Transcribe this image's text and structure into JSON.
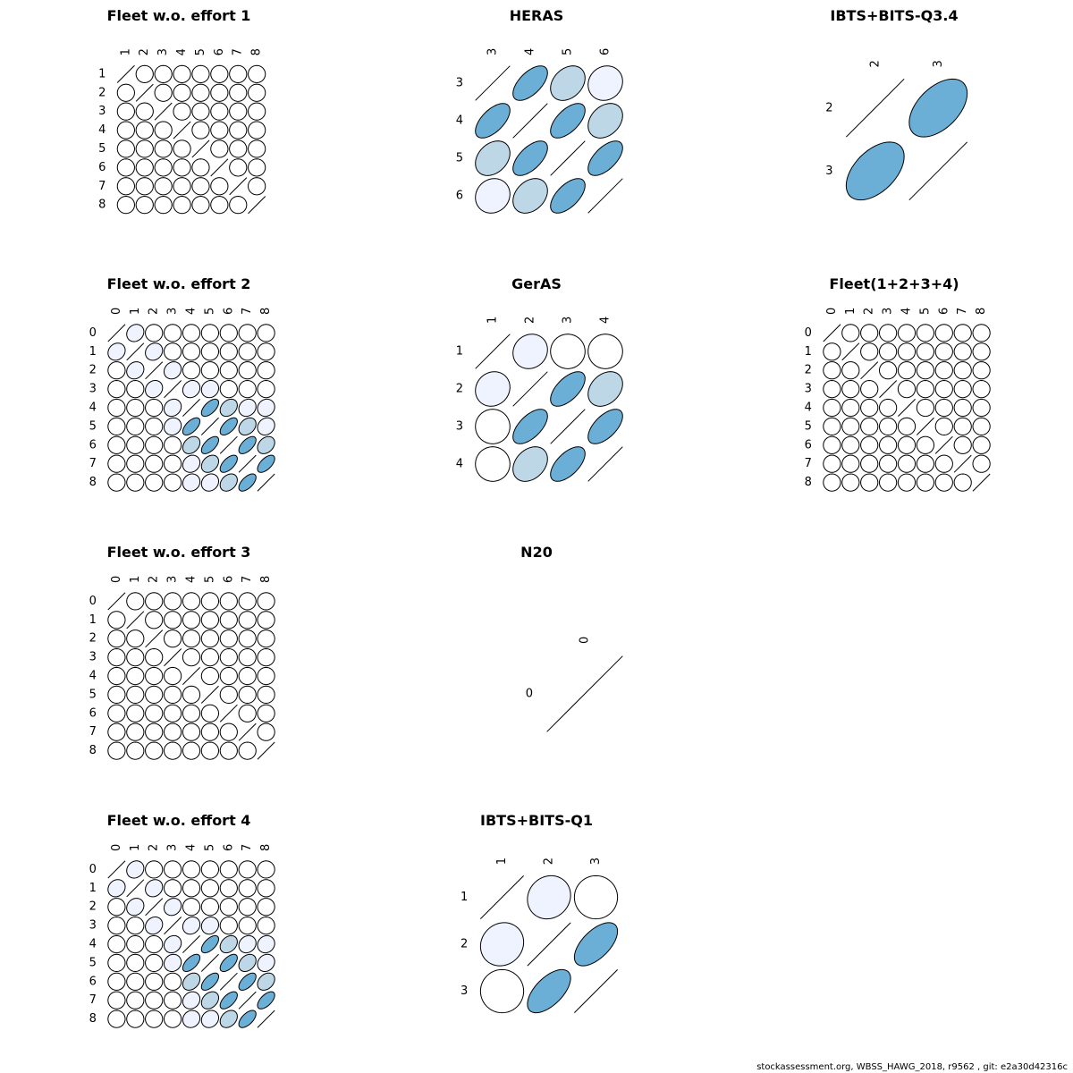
{
  "footer": "stockassessment.org, WBSS_HAWG_2018, r9562 , git: e2a30d42316c",
  "chart_data": [
    {
      "type": "correlation-matrix",
      "title": "Fleet w.o. effort 1",
      "labels": [
        "1",
        "2",
        "3",
        "4",
        "5",
        "6",
        "7",
        "8"
      ],
      "matrix": [
        [
          1,
          0,
          0,
          0,
          0,
          0,
          0,
          0
        ],
        [
          0,
          1,
          0,
          0,
          0,
          0,
          0,
          0
        ],
        [
          0,
          0,
          1,
          0,
          0,
          0,
          0,
          0
        ],
        [
          0,
          0,
          0,
          1,
          0,
          0,
          0,
          0
        ],
        [
          0,
          0,
          0,
          0,
          1,
          0,
          0,
          0
        ],
        [
          0,
          0,
          0,
          0,
          0,
          1,
          0,
          0
        ],
        [
          0,
          0,
          0,
          0,
          0,
          0,
          1,
          0
        ],
        [
          0,
          0,
          0,
          0,
          0,
          0,
          0,
          1
        ]
      ]
    },
    {
      "type": "correlation-matrix",
      "title": "HERAS",
      "labels": [
        "3",
        "4",
        "5",
        "6"
      ],
      "matrix": [
        [
          1,
          0.6,
          0.3,
          0.1
        ],
        [
          0.6,
          1,
          0.6,
          0.3
        ],
        [
          0.3,
          0.6,
          1,
          0.6
        ],
        [
          0.1,
          0.3,
          0.6,
          1
        ]
      ]
    },
    {
      "type": "correlation-matrix",
      "title": "IBTS+BITS-Q3.4",
      "labels": [
        "2",
        "3"
      ],
      "matrix": [
        [
          1,
          0.5
        ],
        [
          0.5,
          1
        ]
      ]
    },
    {
      "type": "correlation-matrix",
      "title": "Fleet w.o. effort 2",
      "labels": [
        "0",
        "1",
        "2",
        "3",
        "4",
        "5",
        "6",
        "7",
        "8"
      ],
      "matrix": [
        [
          1,
          0.15,
          0,
          0,
          0,
          0,
          0,
          0,
          0
        ],
        [
          0.15,
          1,
          0.15,
          0,
          0,
          0,
          0,
          0,
          0
        ],
        [
          0,
          0.15,
          1,
          0.15,
          0,
          0,
          0,
          0,
          0
        ],
        [
          0,
          0,
          0.15,
          1,
          0.15,
          0.1,
          0,
          0,
          0
        ],
        [
          0,
          0,
          0,
          0.15,
          1,
          0.6,
          0.3,
          0.15,
          0.1
        ],
        [
          0,
          0,
          0,
          0.1,
          0.6,
          1,
          0.6,
          0.3,
          0.15
        ],
        [
          0,
          0,
          0,
          0,
          0.3,
          0.6,
          1,
          0.6,
          0.3
        ],
        [
          0,
          0,
          0,
          0,
          0.15,
          0.3,
          0.6,
          1,
          0.6
        ],
        [
          0,
          0,
          0,
          0,
          0.1,
          0.15,
          0.3,
          0.6,
          1
        ]
      ]
    },
    {
      "type": "correlation-matrix",
      "title": "GerAS",
      "labels": [
        "1",
        "2",
        "3",
        "4"
      ],
      "matrix": [
        [
          1,
          0.1,
          0,
          0
        ],
        [
          0.1,
          1,
          0.6,
          0.3
        ],
        [
          0,
          0.6,
          1,
          0.6
        ],
        [
          0,
          0.3,
          0.6,
          1
        ]
      ]
    },
    {
      "type": "correlation-matrix",
      "title": "Fleet(1+2+3+4)",
      "labels": [
        "0",
        "1",
        "2",
        "3",
        "4",
        "5",
        "6",
        "7",
        "8"
      ],
      "matrix": [
        [
          1,
          0,
          0,
          0,
          0,
          0,
          0,
          0,
          0
        ],
        [
          0,
          1,
          0,
          0,
          0,
          0,
          0,
          0,
          0
        ],
        [
          0,
          0,
          1,
          0,
          0,
          0,
          0,
          0,
          0
        ],
        [
          0,
          0,
          0,
          1,
          0,
          0,
          0,
          0,
          0
        ],
        [
          0,
          0,
          0,
          0,
          1,
          0,
          0,
          0,
          0
        ],
        [
          0,
          0,
          0,
          0,
          0,
          1,
          0,
          0,
          0
        ],
        [
          0,
          0,
          0,
          0,
          0,
          0,
          1,
          0,
          0
        ],
        [
          0,
          0,
          0,
          0,
          0,
          0,
          0,
          1,
          0
        ],
        [
          0,
          0,
          0,
          0,
          0,
          0,
          0,
          0,
          1
        ]
      ]
    },
    {
      "type": "correlation-matrix",
      "title": "Fleet w.o. effort 3",
      "labels": [
        "0",
        "1",
        "2",
        "3",
        "4",
        "5",
        "6",
        "7",
        "8"
      ],
      "matrix": [
        [
          1,
          0,
          0,
          0,
          0,
          0,
          0,
          0,
          0
        ],
        [
          0,
          1,
          0,
          0,
          0,
          0,
          0,
          0,
          0
        ],
        [
          0,
          0,
          1,
          0,
          0,
          0,
          0,
          0,
          0
        ],
        [
          0,
          0,
          0,
          1,
          0,
          0,
          0,
          0,
          0
        ],
        [
          0,
          0,
          0,
          0,
          1,
          0,
          0,
          0,
          0
        ],
        [
          0,
          0,
          0,
          0,
          0,
          1,
          0,
          0,
          0
        ],
        [
          0,
          0,
          0,
          0,
          0,
          0,
          1,
          0,
          0
        ],
        [
          0,
          0,
          0,
          0,
          0,
          0,
          0,
          1,
          0
        ],
        [
          0,
          0,
          0,
          0,
          0,
          0,
          0,
          0,
          1
        ]
      ]
    },
    {
      "type": "correlation-matrix",
      "title": "N20",
      "labels": [
        "0"
      ],
      "matrix": [
        [
          1
        ]
      ]
    },
    null,
    {
      "type": "correlation-matrix",
      "title": "Fleet w.o. effort 4",
      "labels": [
        "0",
        "1",
        "2",
        "3",
        "4",
        "5",
        "6",
        "7",
        "8"
      ],
      "matrix": [
        [
          1,
          0.15,
          0,
          0,
          0,
          0,
          0,
          0,
          0
        ],
        [
          0.15,
          1,
          0.15,
          0,
          0,
          0,
          0,
          0,
          0
        ],
        [
          0,
          0.15,
          1,
          0.15,
          0,
          0,
          0,
          0,
          0
        ],
        [
          0,
          0,
          0.15,
          1,
          0.15,
          0.1,
          0,
          0,
          0
        ],
        [
          0,
          0,
          0,
          0.15,
          1,
          0.6,
          0.3,
          0.15,
          0.1
        ],
        [
          0,
          0,
          0,
          0.1,
          0.6,
          1,
          0.6,
          0.3,
          0.15
        ],
        [
          0,
          0,
          0,
          0,
          0.3,
          0.6,
          1,
          0.6,
          0.3
        ],
        [
          0,
          0,
          0,
          0,
          0.15,
          0.3,
          0.6,
          1,
          0.6
        ],
        [
          0,
          0,
          0,
          0,
          0.1,
          0.15,
          0.3,
          0.6,
          1
        ]
      ]
    },
    {
      "type": "correlation-matrix",
      "title": "IBTS+BITS-Q1",
      "labels": [
        "1",
        "2",
        "3"
      ],
      "matrix": [
        [
          1,
          0.1,
          0
        ],
        [
          0.1,
          1,
          0.6
        ],
        [
          0,
          0.6,
          1
        ]
      ]
    }
  ]
}
